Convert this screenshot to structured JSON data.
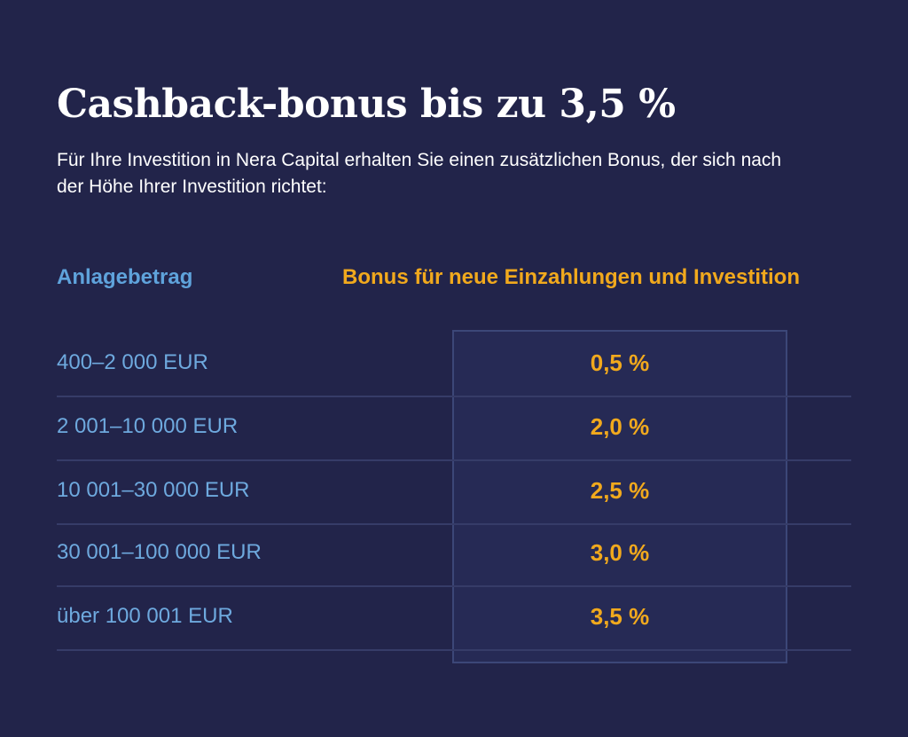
{
  "title": "Cashback-bonus bis zu 3,5 %",
  "subtitle": "Für Ihre Investition in Nera Capital erhalten Sie einen zusätzlichen Bonus, der sich nach der Höhe Ihrer Investition richtet:",
  "table": {
    "header_amount": "Anlagebetrag",
    "header_bonus": "Bonus für neue Einzahlungen und Investition",
    "rows": [
      {
        "amount": "400–2 000 EUR",
        "bonus": "0,5 %"
      },
      {
        "amount": "2 001–10 000 EUR",
        "bonus": "2,0 %"
      },
      {
        "amount": "10 001–30 000 EUR",
        "bonus": "2,5 %"
      },
      {
        "amount": "30 001–100 000 EUR",
        "bonus": "3,0 %"
      },
      {
        "amount": "über 100 001 EUR",
        "bonus": "3,5 %"
      }
    ]
  },
  "colors": {
    "background": "#22244a",
    "accent_blue": "#5fa3dc",
    "accent_orange": "#f1a91d"
  }
}
